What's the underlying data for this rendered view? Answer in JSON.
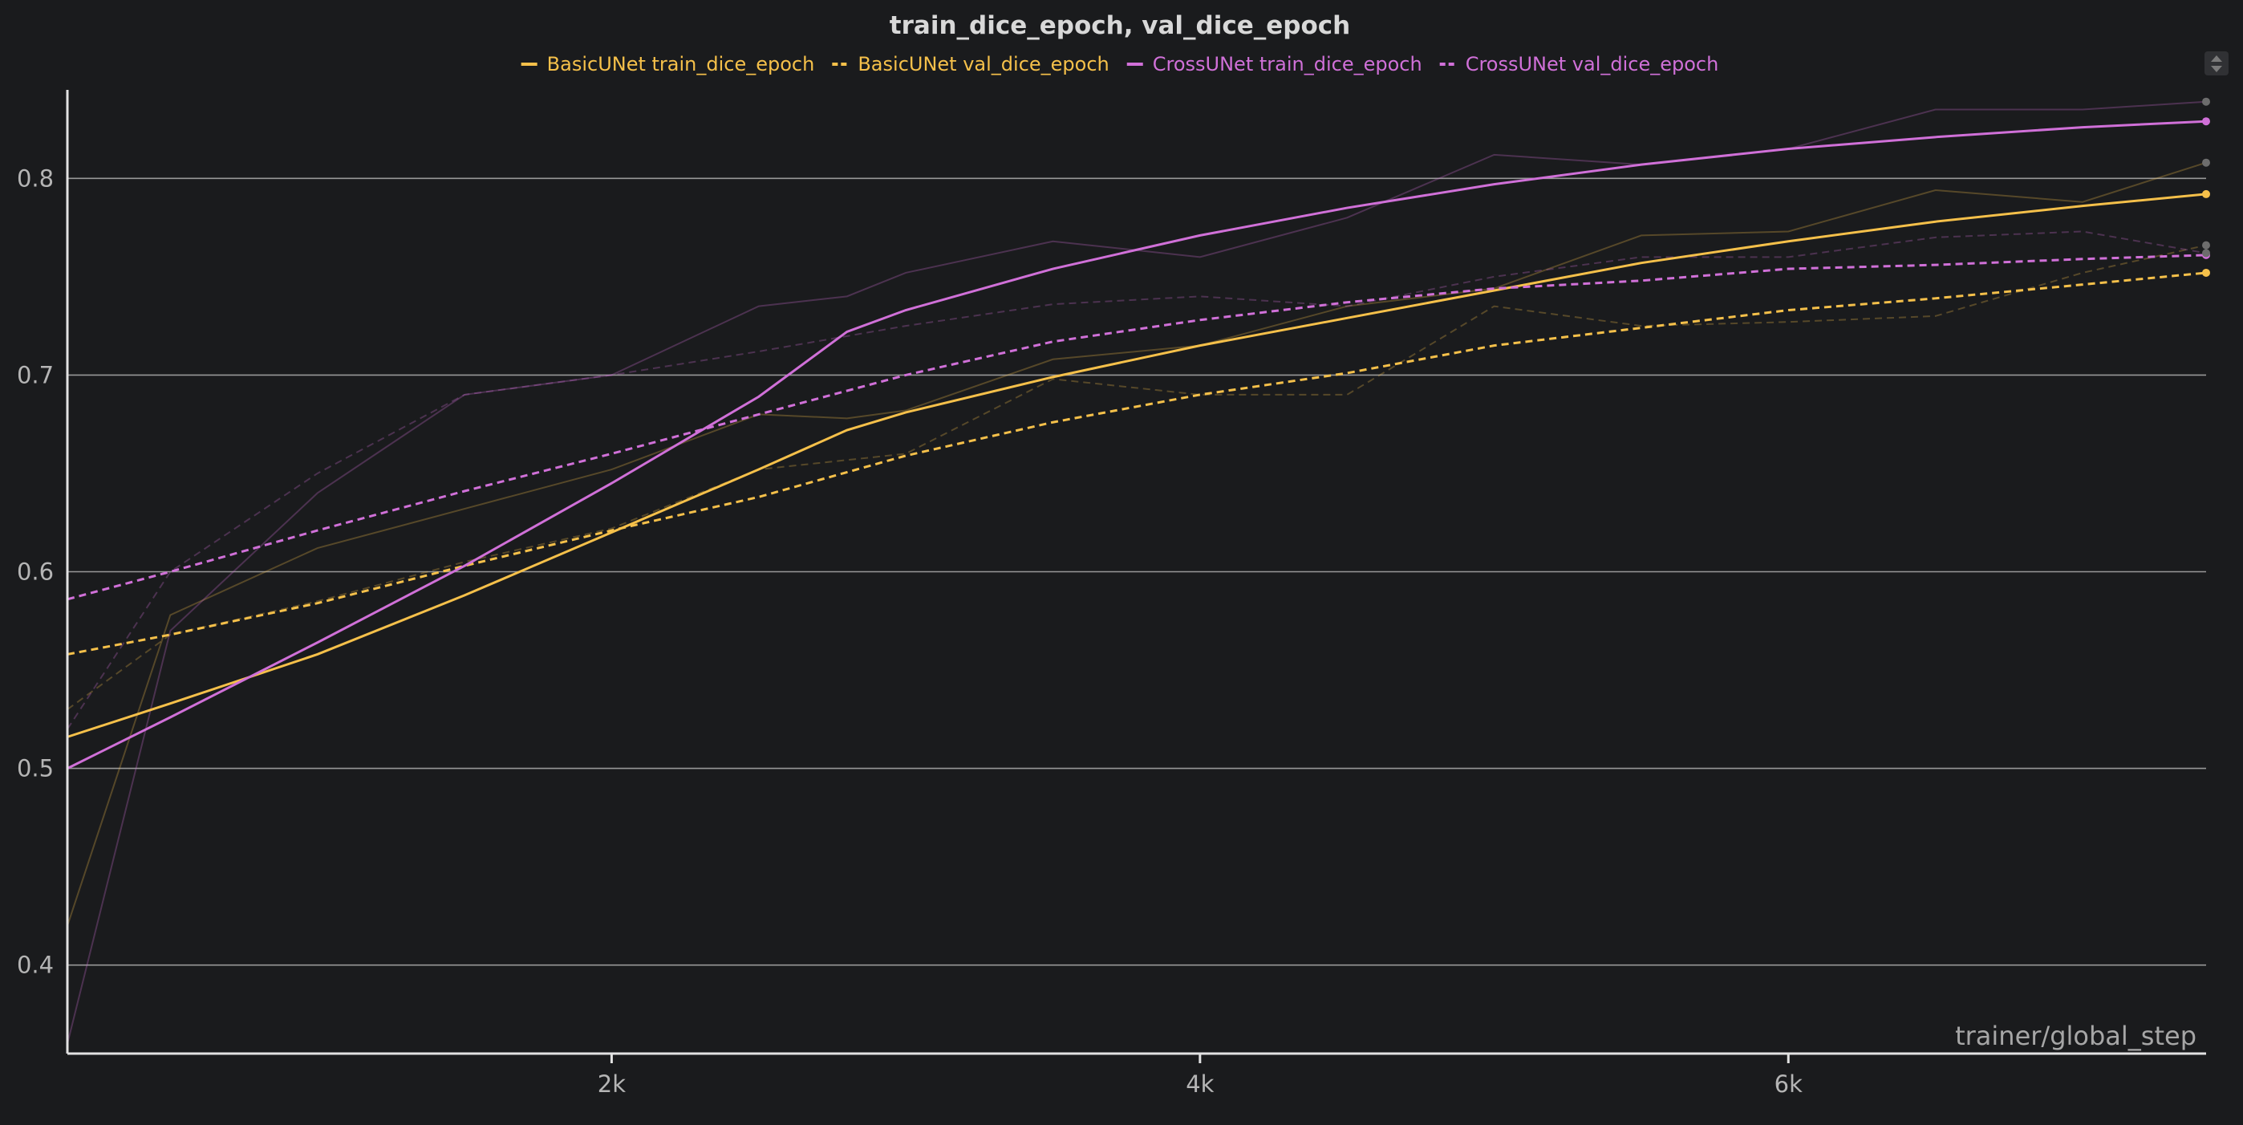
{
  "chart_data": {
    "type": "line",
    "title": "train_dice_epoch, val_dice_epoch",
    "xlabel": "trainer/global_step",
    "ylabel": "",
    "xlim": [
      150,
      7420
    ],
    "ylim": [
      0.355,
      0.845
    ],
    "x_ticks": [
      {
        "value": 2000,
        "label": "2k"
      },
      {
        "value": 4000,
        "label": "4k"
      },
      {
        "value": 6000,
        "label": "6k"
      }
    ],
    "y_ticks": [
      {
        "value": 0.4,
        "label": "0.4"
      },
      {
        "value": 0.5,
        "label": "0.5"
      },
      {
        "value": 0.6,
        "label": "0.6"
      },
      {
        "value": 0.7,
        "label": "0.7"
      },
      {
        "value": 0.8,
        "label": "0.8"
      }
    ],
    "grid": "horizontal",
    "legend_position": "top-center",
    "series": [
      {
        "name": "BasicUNet train_dice_epoch",
        "color": "#f5c04a",
        "dash": "solid",
        "x": [
          150,
          500,
          1000,
          1500,
          2000,
          2500,
          2800,
          3000,
          3500,
          4000,
          4500,
          5000,
          5500,
          6000,
          6500,
          7000,
          7420
        ],
        "smoothed": [
          0.516,
          0.533,
          0.558,
          0.588,
          0.62,
          0.652,
          0.672,
          0.681,
          0.699,
          0.715,
          0.729,
          0.743,
          0.757,
          0.768,
          0.778,
          0.786,
          0.792
        ],
        "raw": [
          0.42,
          0.578,
          0.612,
          0.632,
          0.652,
          0.68,
          0.678,
          0.682,
          0.708,
          0.715,
          0.735,
          0.744,
          0.771,
          0.773,
          0.794,
          0.788,
          0.808
        ]
      },
      {
        "name": "BasicUNet val_dice_epoch",
        "color": "#f5c04a",
        "dash": "dashed",
        "x": [
          150,
          500,
          1000,
          1500,
          2000,
          2500,
          3000,
          3500,
          4000,
          4500,
          5000,
          5500,
          6000,
          6500,
          7000,
          7420
        ],
        "smoothed": [
          0.558,
          0.568,
          0.584,
          0.603,
          0.621,
          0.638,
          0.659,
          0.676,
          0.69,
          0.701,
          0.715,
          0.724,
          0.733,
          0.739,
          0.746,
          0.752
        ],
        "raw": [
          0.53,
          0.568,
          0.585,
          0.605,
          0.622,
          0.652,
          0.66,
          0.698,
          0.69,
          0.69,
          0.735,
          0.725,
          0.727,
          0.73,
          0.752,
          0.766
        ]
      },
      {
        "name": "CrossUNet train_dice_epoch",
        "color": "#d070d8",
        "dash": "solid",
        "x": [
          150,
          500,
          1000,
          1500,
          2000,
          2500,
          2800,
          3000,
          3500,
          4000,
          4500,
          5000,
          5500,
          6000,
          6500,
          7000,
          7420
        ],
        "smoothed": [
          0.5,
          0.526,
          0.564,
          0.603,
          0.645,
          0.689,
          0.722,
          0.733,
          0.754,
          0.771,
          0.785,
          0.797,
          0.807,
          0.815,
          0.821,
          0.826,
          0.829
        ],
        "raw": [
          0.36,
          0.57,
          0.64,
          0.69,
          0.7,
          0.735,
          0.74,
          0.752,
          0.768,
          0.76,
          0.78,
          0.812,
          0.807,
          0.815,
          0.835,
          0.835,
          0.839
        ]
      },
      {
        "name": "CrossUNet val_dice_epoch",
        "color": "#d070d8",
        "dash": "dashed",
        "x": [
          150,
          500,
          1000,
          1500,
          2000,
          2500,
          3000,
          3500,
          4000,
          4500,
          5000,
          5500,
          6000,
          6500,
          7000,
          7420
        ],
        "smoothed": [
          0.586,
          0.6,
          0.621,
          0.641,
          0.66,
          0.68,
          0.7,
          0.717,
          0.728,
          0.737,
          0.744,
          0.748,
          0.754,
          0.756,
          0.759,
          0.761
        ],
        "raw": [
          0.52,
          0.6,
          0.65,
          0.69,
          0.7,
          0.712,
          0.725,
          0.736,
          0.74,
          0.735,
          0.75,
          0.76,
          0.76,
          0.77,
          0.773,
          0.762
        ]
      }
    ]
  }
}
